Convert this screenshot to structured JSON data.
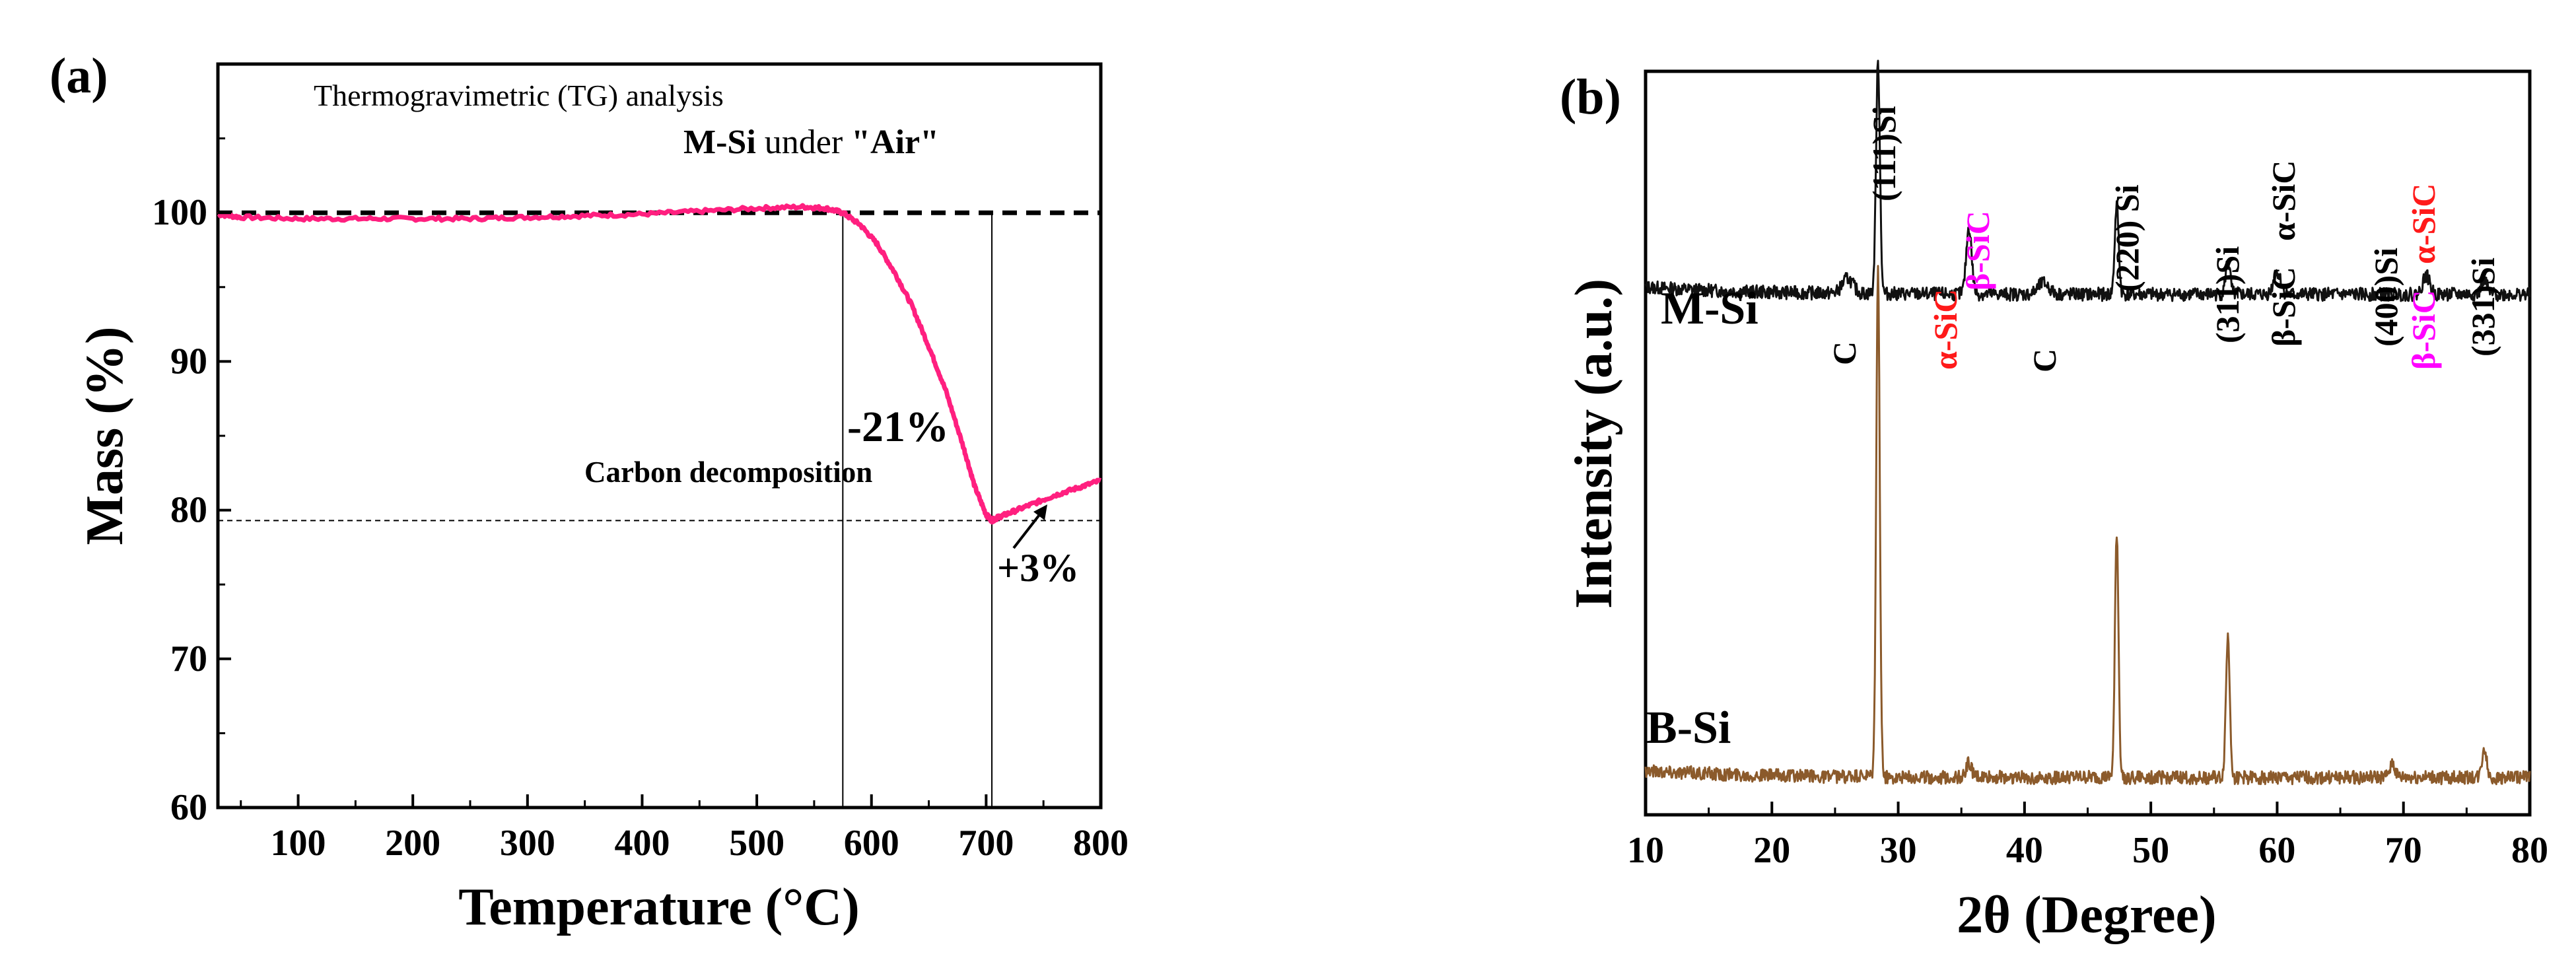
{
  "chart_data": [
    {
      "type": "line",
      "panel_label": "(a)",
      "title": "Thermogravimetric (TG) analysis",
      "subtitle_bold": "M-Si",
      "subtitle_mid": " under ",
      "subtitle_quote": "\"Air\"",
      "xlabel": "Temperature (°C)",
      "ylabel": "Mass (%)",
      "xlim": [
        30,
        800
      ],
      "ylim": [
        60,
        110
      ],
      "xticks": [
        100,
        200,
        300,
        400,
        500,
        600,
        700,
        800
      ],
      "yticks": [
        60,
        70,
        80,
        90,
        100
      ],
      "series": [
        {
          "name": "M-Si",
          "color": "#ff1f7f",
          "x": [
            30,
            50,
            100,
            150,
            200,
            250,
            300,
            350,
            400,
            450,
            500,
            540,
            560,
            575,
            590,
            605,
            620,
            635,
            650,
            665,
            680,
            690,
            700,
            705,
            710,
            720,
            740,
            760,
            780,
            800
          ],
          "y": [
            99.9,
            99.7,
            99.6,
            99.6,
            99.6,
            99.6,
            99.7,
            99.8,
            99.9,
            100.1,
            100.3,
            100.4,
            100.3,
            100.0,
            99.2,
            97.9,
            96.0,
            93.8,
            91.0,
            88.0,
            84.3,
            81.6,
            79.7,
            79.3,
            79.5,
            79.8,
            80.4,
            81.0,
            81.5,
            82.0
          ]
        }
      ],
      "reference_lines": {
        "dashed_y": 100,
        "dotted_y": 79.3,
        "vlines_x": [
          575,
          705
        ]
      },
      "annotations": {
        "loss": "-21%",
        "carbon": "Carbon decomposition",
        "gain": "+3%"
      }
    },
    {
      "type": "line",
      "panel_label": "(b)",
      "xlabel": "2θ (Degree)",
      "ylabel": "Intensity (a.u.)",
      "xlim": [
        10,
        80
      ],
      "xticks": [
        10,
        20,
        30,
        40,
        50,
        60,
        70,
        80
      ],
      "series": [
        {
          "name": "M-Si",
          "color": "#111111",
          "baseline": 0.7,
          "noise": 0.018,
          "peaks": [
            {
              "x": 26.0,
              "h": 0.02,
              "w": 0.6
            },
            {
              "x": 28.4,
              "h": 0.31,
              "w": 0.22
            },
            {
              "x": 35.6,
              "h": 0.09,
              "w": 0.3
            },
            {
              "x": 41.5,
              "h": 0.015,
              "w": 0.6
            },
            {
              "x": 47.3,
              "h": 0.12,
              "w": 0.22
            },
            {
              "x": 56.1,
              "h": 0.045,
              "w": 0.25
            },
            {
              "x": 60.0,
              "h": 0.03,
              "w": 0.4
            },
            {
              "x": 71.8,
              "h": 0.025,
              "w": 0.4
            },
            {
              "x": 76.4,
              "h": 0.02,
              "w": 0.3
            }
          ]
        },
        {
          "name": "B-Si",
          "color": "#8b5a2b",
          "baseline": 0.05,
          "noise": 0.018,
          "peaks": [
            {
              "x": 28.4,
              "h": 0.68,
              "w": 0.2
            },
            {
              "x": 35.6,
              "h": 0.02,
              "w": 0.3
            },
            {
              "x": 47.3,
              "h": 0.33,
              "w": 0.2
            },
            {
              "x": 56.1,
              "h": 0.19,
              "w": 0.22
            },
            {
              "x": 69.1,
              "h": 0.02,
              "w": 0.3
            },
            {
              "x": 76.4,
              "h": 0.04,
              "w": 0.25
            }
          ]
        }
      ],
      "labels": {
        "c1": "C",
        "asic1": "α-SiC",
        "bsic1": "β-SiC",
        "si111": "(111)Si",
        "c2": "C",
        "si220": "(220) Si",
        "si311": "(311)Si",
        "bsic2": "β-SiC",
        "asic2": "α-SiC",
        "si400": "(400)Si",
        "bsic3": "β-SiC",
        "asic3": "α-SiC",
        "si331": "(331)Si"
      },
      "colors": {
        "red": "#ff1a1a",
        "magenta": "#ff00ff",
        "black": "#000000"
      }
    }
  ]
}
